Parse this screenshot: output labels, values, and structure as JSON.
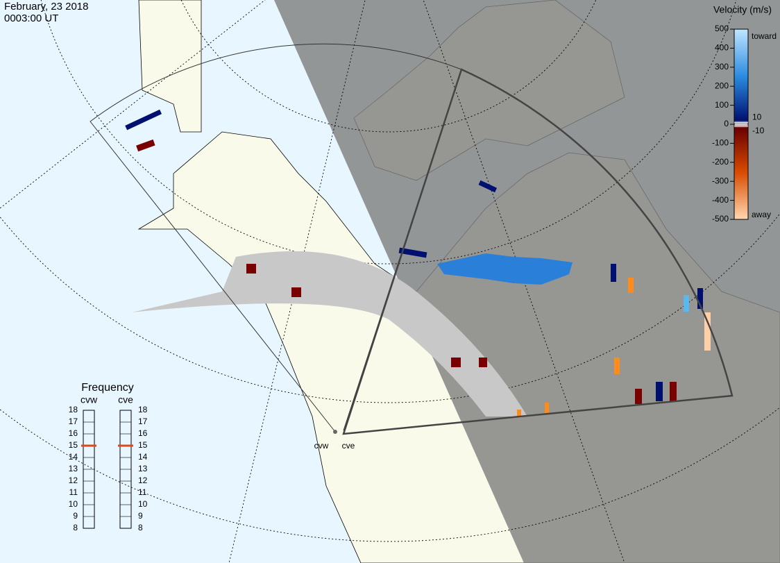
{
  "header": {
    "date": "February, 23 2018",
    "time": "0003:00 UT"
  },
  "colorbar": {
    "title": "Velocity (m/s)",
    "ticks": [
      500,
      400,
      300,
      200,
      100,
      0,
      -100,
      -200,
      -300,
      -400,
      -500
    ],
    "near_zero_ticks": [
      10,
      -10
    ],
    "toward": "toward",
    "away": "away"
  },
  "frequency": {
    "title": "Frequency",
    "scale": [
      18,
      17,
      16,
      15,
      14,
      13,
      12,
      11,
      10,
      9,
      8
    ],
    "radars": [
      {
        "name": "cvw",
        "selected": 15
      },
      {
        "name": "cve",
        "selected": 15
      }
    ]
  }
}
